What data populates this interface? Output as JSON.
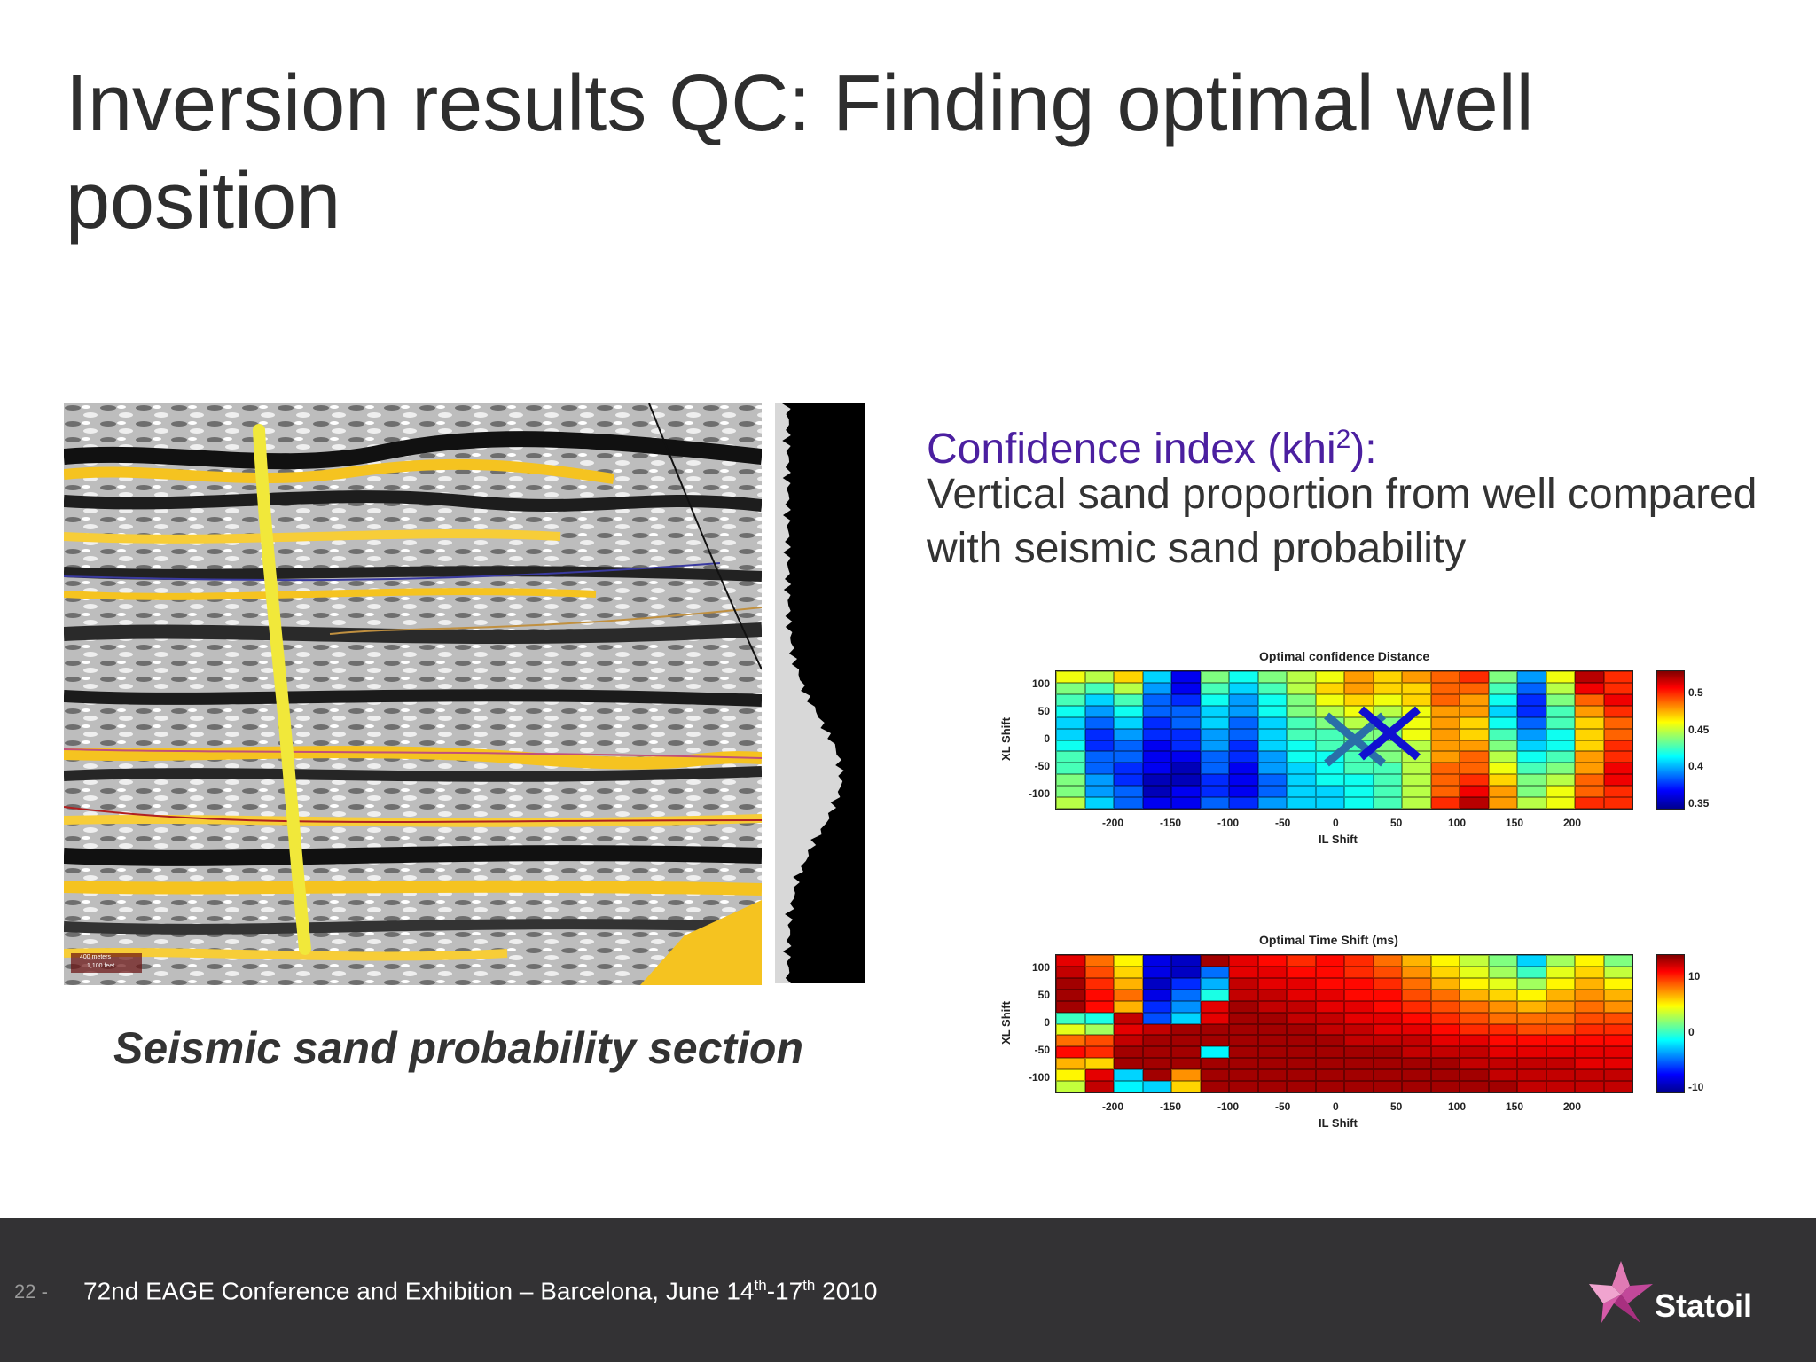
{
  "slide": {
    "title": "Inversion results QC: Finding optimal well position",
    "caption": "Seismic sand probability section"
  },
  "text_block": {
    "heading_main": "Confidence index (khi",
    "heading_sup": "2",
    "heading_end": "):",
    "body": "Vertical sand proportion from well compared with seismic sand probability"
  },
  "seismic": {
    "scale_label_1": "400 meters",
    "scale_label_2": "1,100 feet"
  },
  "chart_data": [
    {
      "type": "heatmap",
      "title": "Optimal confidence Distance",
      "xlabel": "IL Shift",
      "ylabel": "XL Shift",
      "xticks": [
        "-200",
        "-150",
        "-100",
        "-50",
        "0",
        "50",
        "100",
        "150",
        "200"
      ],
      "yticks": [
        "100",
        "50",
        "0",
        "-50",
        "-100"
      ],
      "colorbar_ticks": [
        "0.5",
        "0.45",
        "0.4",
        "0.35"
      ],
      "clim": [
        0.34,
        0.52
      ],
      "cols": 20,
      "rows": 12,
      "values": [
        [
          0.45,
          0.44,
          0.46,
          0.4,
          0.36,
          0.43,
          0.41,
          0.43,
          0.44,
          0.45,
          0.47,
          0.46,
          0.47,
          0.48,
          0.49,
          0.43,
          0.39,
          0.45,
          0.51,
          0.49
        ],
        [
          0.43,
          0.42,
          0.44,
          0.39,
          0.36,
          0.42,
          0.4,
          0.42,
          0.44,
          0.46,
          0.47,
          0.46,
          0.46,
          0.48,
          0.48,
          0.42,
          0.38,
          0.44,
          0.5,
          0.49
        ],
        [
          0.42,
          0.4,
          0.42,
          0.38,
          0.37,
          0.41,
          0.39,
          0.41,
          0.43,
          0.45,
          0.46,
          0.45,
          0.46,
          0.48,
          0.47,
          0.41,
          0.37,
          0.43,
          0.48,
          0.5
        ],
        [
          0.41,
          0.39,
          0.41,
          0.38,
          0.38,
          0.4,
          0.39,
          0.41,
          0.43,
          0.44,
          0.45,
          0.44,
          0.45,
          0.47,
          0.47,
          0.4,
          0.37,
          0.42,
          0.47,
          0.49
        ],
        [
          0.4,
          0.38,
          0.4,
          0.37,
          0.38,
          0.4,
          0.38,
          0.4,
          0.42,
          0.43,
          0.44,
          0.43,
          0.45,
          0.47,
          0.46,
          0.41,
          0.38,
          0.42,
          0.46,
          0.48
        ],
        [
          0.4,
          0.37,
          0.39,
          0.37,
          0.37,
          0.39,
          0.38,
          0.4,
          0.42,
          0.42,
          0.43,
          0.43,
          0.45,
          0.47,
          0.46,
          0.42,
          0.39,
          0.41,
          0.46,
          0.48
        ],
        [
          0.41,
          0.37,
          0.38,
          0.36,
          0.37,
          0.39,
          0.37,
          0.4,
          0.41,
          0.42,
          0.42,
          0.43,
          0.44,
          0.47,
          0.47,
          0.43,
          0.4,
          0.41,
          0.46,
          0.49
        ],
        [
          0.42,
          0.38,
          0.38,
          0.36,
          0.36,
          0.38,
          0.37,
          0.39,
          0.41,
          0.41,
          0.42,
          0.43,
          0.44,
          0.47,
          0.48,
          0.44,
          0.41,
          0.42,
          0.47,
          0.49
        ],
        [
          0.42,
          0.38,
          0.37,
          0.36,
          0.35,
          0.38,
          0.36,
          0.39,
          0.4,
          0.41,
          0.42,
          0.42,
          0.44,
          0.48,
          0.48,
          0.45,
          0.42,
          0.43,
          0.47,
          0.5
        ],
        [
          0.43,
          0.39,
          0.37,
          0.35,
          0.35,
          0.37,
          0.36,
          0.38,
          0.4,
          0.41,
          0.41,
          0.42,
          0.44,
          0.48,
          0.49,
          0.46,
          0.43,
          0.44,
          0.48,
          0.5
        ],
        [
          0.43,
          0.39,
          0.38,
          0.35,
          0.36,
          0.37,
          0.36,
          0.38,
          0.4,
          0.4,
          0.41,
          0.42,
          0.44,
          0.48,
          0.5,
          0.47,
          0.43,
          0.45,
          0.48,
          0.49
        ],
        [
          0.44,
          0.4,
          0.38,
          0.36,
          0.36,
          0.38,
          0.37,
          0.39,
          0.4,
          0.4,
          0.41,
          0.42,
          0.44,
          0.49,
          0.51,
          0.47,
          0.44,
          0.45,
          0.49,
          0.49
        ]
      ],
      "markers": [
        {
          "x": 10,
          "y": 0,
          "color": "#2a6ea8"
        },
        {
          "x": 40,
          "y": 10,
          "color": "#1010d0"
        }
      ]
    },
    {
      "type": "heatmap",
      "title": "Optimal Time Shift (ms)",
      "xlabel": "IL Shift",
      "ylabel": "XL Shift",
      "xticks": [
        "-200",
        "-150",
        "-100",
        "-50",
        "0",
        "50",
        "100",
        "150",
        "200"
      ],
      "yticks": [
        "100",
        "50",
        "0",
        "-50",
        "-100"
      ],
      "colorbar_ticks": [
        "10",
        "0",
        "-10"
      ],
      "clim": [
        -15,
        15
      ],
      "cols": 20,
      "rows": 12,
      "values": [
        [
          12,
          8,
          4,
          -12,
          -13,
          14,
          12,
          11,
          10,
          11,
          10,
          8,
          6,
          4,
          2,
          0,
          -5,
          1,
          4,
          0
        ],
        [
          13,
          9,
          5,
          -12,
          -13,
          -8,
          12,
          12,
          11,
          11,
          10,
          9,
          7,
          5,
          3,
          1,
          -2,
          3,
          5,
          2
        ],
        [
          14,
          10,
          6,
          -13,
          -10,
          -6,
          13,
          12,
          12,
          11,
          11,
          10,
          8,
          6,
          4,
          3,
          1,
          4,
          6,
          4
        ],
        [
          14,
          11,
          8,
          -12,
          -8,
          -3,
          13,
          13,
          12,
          12,
          11,
          11,
          9,
          8,
          6,
          5,
          4,
          6,
          7,
          6
        ],
        [
          14,
          11,
          6,
          -10,
          -7,
          12,
          14,
          13,
          13,
          12,
          12,
          11,
          10,
          9,
          8,
          7,
          6,
          7,
          8,
          7
        ],
        [
          -2,
          -3,
          13,
          -9,
          -5,
          12,
          14,
          14,
          13,
          13,
          12,
          12,
          11,
          10,
          9,
          8,
          8,
          8,
          9,
          9
        ],
        [
          3,
          1,
          12,
          13,
          14,
          14,
          14,
          14,
          14,
          13,
          13,
          12,
          12,
          11,
          10,
          10,
          9,
          9,
          10,
          10
        ],
        [
          8,
          9,
          13,
          14,
          14,
          14,
          14,
          14,
          14,
          14,
          13,
          13,
          13,
          12,
          12,
          11,
          11,
          11,
          11,
          11
        ],
        [
          11,
          10,
          14,
          14,
          14,
          -4,
          14,
          14,
          14,
          14,
          14,
          14,
          13,
          13,
          13,
          12,
          12,
          12,
          12,
          12
        ],
        [
          6,
          5,
          14,
          14,
          14,
          14,
          14,
          14,
          14,
          14,
          14,
          14,
          14,
          14,
          13,
          13,
          13,
          13,
          12,
          12
        ],
        [
          4,
          12,
          -5,
          14,
          7,
          14,
          14,
          14,
          14,
          14,
          14,
          14,
          14,
          14,
          14,
          13,
          13,
          13,
          13,
          13
        ],
        [
          2,
          13,
          -4,
          -5,
          5,
          14,
          14,
          14,
          14,
          14,
          14,
          14,
          14,
          14,
          14,
          14,
          13,
          13,
          13,
          13
        ]
      ]
    }
  ],
  "footer": {
    "page_number": "22 -",
    "conference": "72nd EAGE Conference and Exhibition – Barcelona, June 14",
    "sup1": "th",
    "mid": "-17",
    "sup2": "th",
    "year": " 2010",
    "logo_text": "Statoil"
  },
  "colors": {
    "footer_bg": "#333234",
    "heading_purple": "#4b1fa0",
    "sand_yellow": "#f5c320"
  }
}
